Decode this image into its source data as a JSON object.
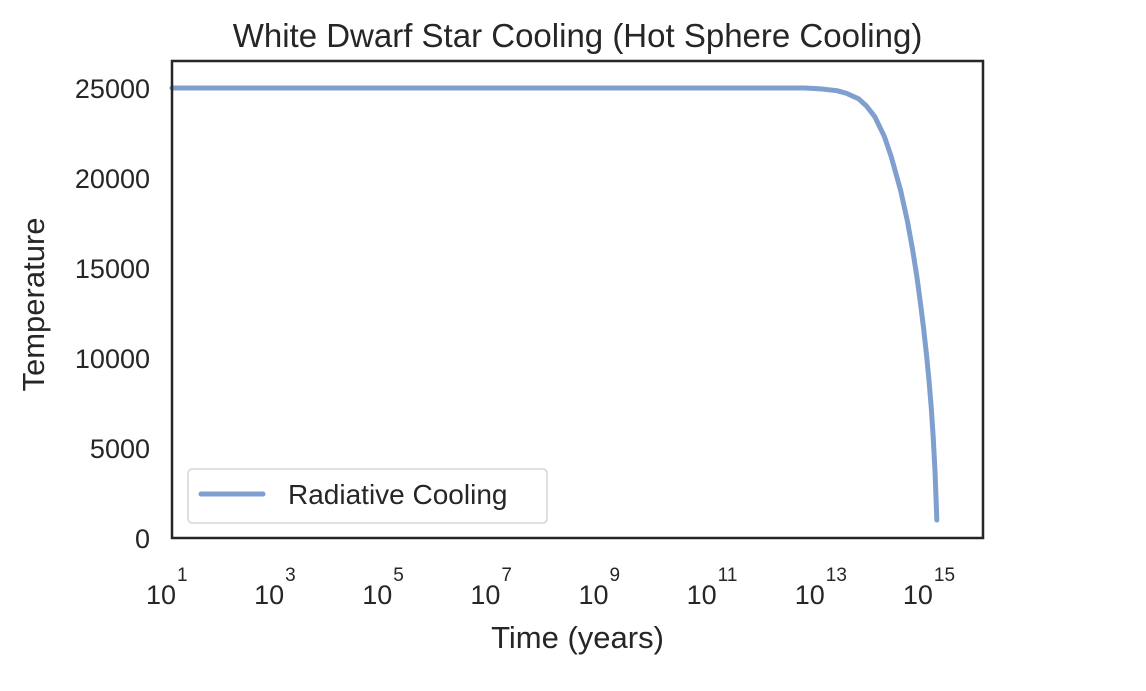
{
  "chart_data": {
    "type": "line",
    "title": "White Dwarf Star Cooling (Hot Sphere Cooling)",
    "xlabel": "Time (years)",
    "ylabel": "Temperature",
    "x_scale": "log",
    "xlim": [
      10,
      1e+16
    ],
    "ylim": [
      0,
      26500
    ],
    "x_ticks": [
      {
        "base": "10",
        "exp": "1",
        "value": 10.0
      },
      {
        "base": "10",
        "exp": "3",
        "value": 1000.0
      },
      {
        "base": "10",
        "exp": "5",
        "value": 100000.0
      },
      {
        "base": "10",
        "exp": "7",
        "value": 10000000.0
      },
      {
        "base": "10",
        "exp": "9",
        "value": 1000000000.0
      },
      {
        "base": "10",
        "exp": "11",
        "value": 100000000000.0
      },
      {
        "base": "10",
        "exp": "13",
        "value": 10000000000000.0
      },
      {
        "base": "10",
        "exp": "15",
        "value": 1000000000000000.0
      }
    ],
    "y_ticks": [
      {
        "label": "0",
        "value": 0
      },
      {
        "label": "5000",
        "value": 5000
      },
      {
        "label": "10000",
        "value": 10000
      },
      {
        "label": "15000",
        "value": 15000
      },
      {
        "label": "20000",
        "value": 20000
      },
      {
        "label": "25000",
        "value": 25000
      }
    ],
    "grid": false,
    "legend_position": "lower-left",
    "series": [
      {
        "name": "Radiative Cooling",
        "color": "#7f9fcf",
        "x": [
          10,
          100000.0,
          10000000000.0,
          1000000000000.0,
          5000000000000.0,
          10000000000000.0,
          20000000000000.0,
          30000000000000.0,
          50000000000000.0,
          70000000000000.0,
          100000000000000.0,
          150000000000000.0,
          200000000000000.0,
          300000000000000.0,
          400000000000000.0,
          500000000000000.0,
          600000000000000.0,
          700000000000000.0,
          800000000000000.0,
          900000000000000.0,
          1000000000000000.0,
          1100000000000000.0,
          1200000000000000.0,
          1300000000000000.0,
          1400000000000000.0
        ],
        "values": [
          25000,
          25000,
          25000,
          25000,
          25000,
          24950,
          24850,
          24700,
          24400,
          24000,
          23400,
          22300,
          21200,
          19300,
          17600,
          16000,
          14500,
          13000,
          11600,
          10200,
          8800,
          7300,
          5600,
          3600,
          1000
        ]
      }
    ]
  }
}
